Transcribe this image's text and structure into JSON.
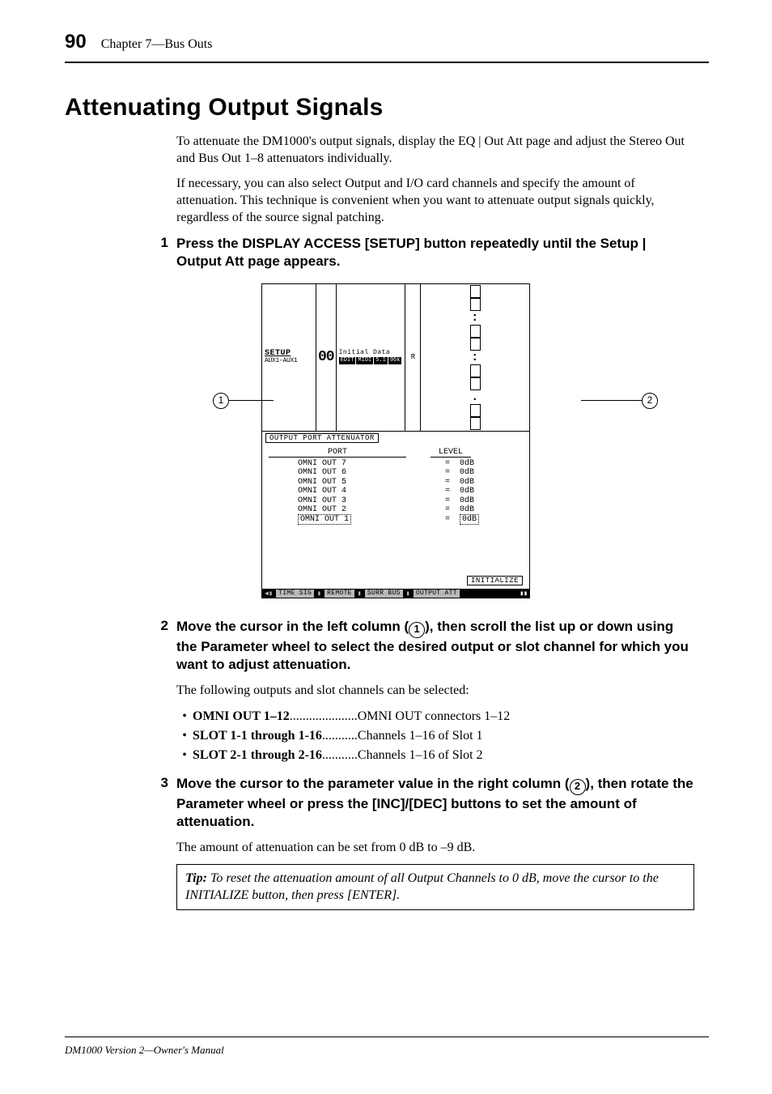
{
  "page_number": "90",
  "chapter": "Chapter 7—Bus Outs",
  "h1": "Attenuating Output Signals",
  "intro1": "To attenuate the DM1000's output signals, display the EQ | Out Att page and adjust the Stereo Out and Bus Out 1–8 attenuators individually.",
  "intro2": "If necessary, you can also select Output and I/O card channels and specify the amount of attenuation. This technique is convenient when you want to attenuate output signals quickly, regardless of the source signal patching.",
  "step1_num": "1",
  "step1_txt": "Press the DISPLAY ACCESS [SETUP] button repeatedly until the Setup | Output Att page appears.",
  "step2_num": "2",
  "step2_txt_a": "Move the cursor in the left column (",
  "step2_txt_b": "), then scroll the list up or down using the Parameter wheel to select the desired output or slot channel for which you want to adjust attenuation.",
  "list_intro": "The following outputs and slot channels can be selected:",
  "bullets": [
    {
      "label": "OMNI OUT 1–12",
      "desc": "OMNI OUT connectors 1–12"
    },
    {
      "label": "SLOT 1-1 through 1-16",
      "desc": "Channels 1–16 of Slot 1"
    },
    {
      "label": "SLOT 2-1 through 2-16",
      "desc": "Channels 1–16 of Slot 2"
    }
  ],
  "step3_num": "3",
  "step3_txt_a": "Move the cursor to the parameter value in the right column (",
  "step3_txt_b": "), then rotate the Parameter wheel or press the [INC]/[DEC] buttons to set the amount of attenuation.",
  "range_txt": "The amount of attenuation can be set from 0 dB to –9 dB.",
  "tip_label": "Tip:",
  "tip_body": "  To reset the attenuation amount of all Output Channels to 0 dB, move the cursor to the INITIALIZE button, then press [ENTER].",
  "footer": "DM1000 Version 2—Owner's Manual",
  "lcd": {
    "top": {
      "setup1": "SETUP",
      "setup2": "AUX1-AUX1",
      "digits": "00",
      "init_top": "Initial Data",
      "chip1": "EDIT",
      "chip2": "MIDI",
      "chip3": "5.1",
      "chip4": "96k",
      "rec": "R"
    },
    "tab": "OUTPUT PORT ATTENUATOR",
    "head_port": "PORT",
    "head_level": "LEVEL",
    "rows": [
      {
        "port": "OMNI OUT 7",
        "eq": "=",
        "level": "0dB"
      },
      {
        "port": "OMNI OUT 6",
        "eq": "=",
        "level": "0dB"
      },
      {
        "port": "OMNI OUT 5",
        "eq": "=",
        "level": "0dB"
      },
      {
        "port": "OMNI OUT 4",
        "eq": "=",
        "level": "0dB"
      },
      {
        "port": "OMNI OUT 3",
        "eq": "=",
        "level": "0dB"
      },
      {
        "port": "OMNI OUT 2",
        "eq": "=",
        "level": "0dB"
      },
      {
        "port": "OMNI OUT 1",
        "eq": "=",
        "level": "0dB"
      }
    ],
    "init_btn": "INITIALIZE",
    "tabs_bottom": [
      "◀▮",
      "TIME SIG",
      "▮",
      "REMOTE",
      "▮",
      "SURR BUS",
      "▮",
      "OUTPUT ATT"
    ]
  },
  "callout1": "1",
  "callout2": "2"
}
